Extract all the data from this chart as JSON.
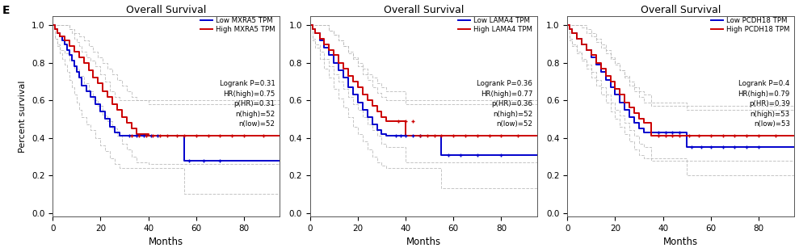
{
  "panels": [
    {
      "title": "Overall Survival",
      "gene": "MXRA5",
      "low_label": "Low MXRA5 TPM",
      "high_label": "High MXRA5 TPM",
      "logrank_p": "0.31",
      "hr_high": "0.75",
      "p_hr": "0.31",
      "n_high": "52",
      "n_low": "52",
      "blue": {
        "x": [
          0,
          1,
          2,
          3,
          4,
          5,
          6,
          7,
          8,
          9,
          10,
          11,
          12,
          14,
          16,
          18,
          20,
          22,
          24,
          26,
          28,
          30,
          32,
          35,
          55,
          57,
          95
        ],
        "y": [
          1.0,
          0.98,
          0.96,
          0.94,
          0.92,
          0.9,
          0.87,
          0.84,
          0.81,
          0.78,
          0.75,
          0.72,
          0.68,
          0.65,
          0.62,
          0.58,
          0.54,
          0.5,
          0.46,
          0.43,
          0.41,
          0.41,
          0.41,
          0.41,
          0.28,
          0.28,
          0.28
        ],
        "ci_low": [
          1.0,
          0.93,
          0.89,
          0.85,
          0.82,
          0.79,
          0.75,
          0.71,
          0.67,
          0.63,
          0.59,
          0.55,
          0.51,
          0.47,
          0.44,
          0.4,
          0.36,
          0.33,
          0.29,
          0.26,
          0.24,
          0.24,
          0.24,
          0.24,
          0.1,
          0.1,
          0.1
        ],
        "ci_high": [
          1.0,
          1.0,
          1.0,
          1.0,
          1.0,
          1.0,
          1.0,
          0.98,
          0.96,
          0.93,
          0.91,
          0.89,
          0.86,
          0.83,
          0.81,
          0.78,
          0.74,
          0.7,
          0.65,
          0.62,
          0.6,
          0.6,
          0.6,
          0.6,
          0.6,
          0.6,
          0.6
        ],
        "censors_x": [
          32,
          35,
          38,
          41,
          44,
          57,
          63,
          70
        ],
        "censors_y": [
          0.41,
          0.41,
          0.41,
          0.41,
          0.41,
          0.28,
          0.28,
          0.28
        ]
      },
      "red": {
        "x": [
          0,
          1,
          2,
          3,
          5,
          7,
          9,
          11,
          13,
          15,
          17,
          19,
          21,
          23,
          25,
          27,
          29,
          31,
          33,
          35,
          40,
          45,
          50,
          55,
          60,
          65,
          70,
          80,
          95
        ],
        "y": [
          1.0,
          0.98,
          0.96,
          0.94,
          0.92,
          0.89,
          0.86,
          0.83,
          0.8,
          0.76,
          0.72,
          0.69,
          0.65,
          0.62,
          0.58,
          0.55,
          0.51,
          0.48,
          0.45,
          0.42,
          0.41,
          0.41,
          0.41,
          0.41,
          0.41,
          0.41,
          0.41,
          0.41,
          0.41
        ],
        "ci_low": [
          1.0,
          0.93,
          0.9,
          0.87,
          0.85,
          0.81,
          0.77,
          0.73,
          0.69,
          0.65,
          0.6,
          0.57,
          0.52,
          0.49,
          0.45,
          0.41,
          0.37,
          0.34,
          0.3,
          0.27,
          0.26,
          0.26,
          0.26,
          0.26,
          0.26,
          0.26,
          0.26,
          0.26,
          0.26
        ],
        "ci_high": [
          1.0,
          1.0,
          1.0,
          1.0,
          1.0,
          0.98,
          0.96,
          0.94,
          0.92,
          0.89,
          0.86,
          0.83,
          0.8,
          0.77,
          0.74,
          0.71,
          0.68,
          0.65,
          0.62,
          0.6,
          0.58,
          0.58,
          0.58,
          0.58,
          0.58,
          0.58,
          0.58,
          0.58,
          0.58
        ],
        "censors_x": [
          33,
          36,
          39,
          42,
          45,
          48,
          52,
          55,
          60,
          65,
          70,
          75,
          80,
          88
        ],
        "censors_y": [
          0.41,
          0.41,
          0.41,
          0.41,
          0.41,
          0.41,
          0.41,
          0.41,
          0.41,
          0.41,
          0.41,
          0.41,
          0.41,
          0.41
        ]
      }
    },
    {
      "title": "Overall Survival",
      "gene": "LAMA4",
      "low_label": "Low LAMA4 TPM",
      "high_label": "High LAMA4 TPM",
      "logrank_p": "0.36",
      "hr_high": "0.77",
      "p_hr": "0.36",
      "n_high": "52",
      "n_low": "52",
      "blue": {
        "x": [
          0,
          1,
          2,
          4,
          6,
          8,
          10,
          12,
          14,
          16,
          18,
          20,
          22,
          24,
          26,
          28,
          30,
          32,
          34,
          36,
          55,
          58,
          62,
          70,
          95
        ],
        "y": [
          1.0,
          0.98,
          0.96,
          0.92,
          0.88,
          0.84,
          0.8,
          0.76,
          0.72,
          0.67,
          0.63,
          0.59,
          0.55,
          0.51,
          0.47,
          0.44,
          0.42,
          0.41,
          0.41,
          0.41,
          0.31,
          0.31,
          0.31,
          0.31,
          0.31
        ],
        "ci_low": [
          1.0,
          0.92,
          0.88,
          0.82,
          0.77,
          0.72,
          0.66,
          0.61,
          0.56,
          0.51,
          0.46,
          0.42,
          0.38,
          0.34,
          0.3,
          0.27,
          0.25,
          0.24,
          0.24,
          0.24,
          0.13,
          0.13,
          0.13,
          0.13,
          0.13
        ],
        "ci_high": [
          1.0,
          1.0,
          1.0,
          1.0,
          1.0,
          0.97,
          0.95,
          0.92,
          0.89,
          0.85,
          0.82,
          0.78,
          0.74,
          0.71,
          0.67,
          0.64,
          0.62,
          0.6,
          0.6,
          0.6,
          0.6,
          0.6,
          0.6,
          0.6,
          0.6
        ],
        "censors_x": [
          36,
          38,
          40,
          43,
          46,
          58,
          63,
          70,
          80
        ],
        "censors_y": [
          0.41,
          0.41,
          0.41,
          0.41,
          0.41,
          0.31,
          0.31,
          0.31,
          0.31
        ]
      },
      "red": {
        "x": [
          0,
          1,
          2,
          4,
          6,
          8,
          10,
          12,
          14,
          16,
          18,
          20,
          22,
          24,
          26,
          28,
          30,
          32,
          34,
          36,
          40,
          45,
          50,
          55,
          60,
          65,
          70,
          80,
          95
        ],
        "y": [
          1.0,
          0.98,
          0.96,
          0.93,
          0.9,
          0.87,
          0.84,
          0.8,
          0.77,
          0.73,
          0.7,
          0.67,
          0.63,
          0.6,
          0.57,
          0.54,
          0.51,
          0.49,
          0.49,
          0.49,
          0.41,
          0.41,
          0.41,
          0.41,
          0.41,
          0.41,
          0.41,
          0.41,
          0.41
        ],
        "ci_low": [
          1.0,
          0.93,
          0.9,
          0.86,
          0.82,
          0.78,
          0.74,
          0.7,
          0.66,
          0.62,
          0.58,
          0.55,
          0.51,
          0.47,
          0.44,
          0.41,
          0.37,
          0.35,
          0.35,
          0.35,
          0.27,
          0.27,
          0.27,
          0.27,
          0.27,
          0.27,
          0.27,
          0.27,
          0.27
        ],
        "ci_high": [
          1.0,
          1.0,
          1.0,
          1.0,
          1.0,
          0.97,
          0.95,
          0.92,
          0.89,
          0.86,
          0.83,
          0.8,
          0.77,
          0.74,
          0.72,
          0.69,
          0.67,
          0.65,
          0.65,
          0.65,
          0.58,
          0.58,
          0.58,
          0.58,
          0.58,
          0.58,
          0.58,
          0.58,
          0.58
        ],
        "censors_x": [
          37,
          40,
          43,
          46,
          49,
          52,
          55,
          60,
          65,
          70,
          75,
          80,
          87
        ],
        "censors_y": [
          0.49,
          0.49,
          0.49,
          0.41,
          0.41,
          0.41,
          0.41,
          0.41,
          0.41,
          0.41,
          0.41,
          0.41,
          0.41
        ]
      }
    },
    {
      "title": "Overall Survival",
      "gene": "PCDH18",
      "low_label": "Low PCDH18 TPM",
      "high_label": "High PCDH18 TPM",
      "logrank_p": "0.4",
      "hr_high": "0.79",
      "p_hr": "0.39",
      "n_high": "53",
      "n_low": "53",
      "blue": {
        "x": [
          0,
          1,
          2,
          4,
          6,
          8,
          10,
          12,
          14,
          16,
          18,
          20,
          22,
          24,
          26,
          28,
          30,
          32,
          35,
          38,
          42,
          46,
          50,
          54,
          58,
          62,
          66,
          70,
          80,
          95
        ],
        "y": [
          1.0,
          0.98,
          0.96,
          0.93,
          0.9,
          0.87,
          0.83,
          0.79,
          0.75,
          0.71,
          0.67,
          0.63,
          0.59,
          0.55,
          0.51,
          0.48,
          0.45,
          0.43,
          0.43,
          0.43,
          0.43,
          0.43,
          0.35,
          0.35,
          0.35,
          0.35,
          0.35,
          0.35,
          0.35,
          0.35
        ],
        "ci_low": [
          1.0,
          0.92,
          0.89,
          0.85,
          0.81,
          0.77,
          0.72,
          0.68,
          0.63,
          0.59,
          0.54,
          0.5,
          0.46,
          0.42,
          0.38,
          0.34,
          0.31,
          0.29,
          0.29,
          0.29,
          0.29,
          0.29,
          0.2,
          0.2,
          0.2,
          0.2,
          0.2,
          0.2,
          0.2,
          0.2
        ],
        "ci_high": [
          1.0,
          1.0,
          1.0,
          1.0,
          1.0,
          0.98,
          0.96,
          0.93,
          0.9,
          0.87,
          0.83,
          0.8,
          0.76,
          0.72,
          0.68,
          0.65,
          0.62,
          0.59,
          0.59,
          0.59,
          0.59,
          0.59,
          0.55,
          0.55,
          0.55,
          0.55,
          0.55,
          0.55,
          0.55,
          0.55
        ],
        "censors_x": [
          38,
          41,
          44,
          47,
          52,
          56,
          60,
          65,
          70,
          75,
          80
        ],
        "censors_y": [
          0.43,
          0.43,
          0.43,
          0.43,
          0.35,
          0.35,
          0.35,
          0.35,
          0.35,
          0.35,
          0.35
        ]
      },
      "red": {
        "x": [
          0,
          1,
          2,
          4,
          6,
          8,
          10,
          12,
          14,
          16,
          18,
          20,
          22,
          24,
          26,
          28,
          30,
          32,
          35,
          38,
          42,
          46,
          50,
          55,
          60,
          65,
          70,
          80,
          90,
          95
        ],
        "y": [
          1.0,
          0.98,
          0.96,
          0.93,
          0.9,
          0.87,
          0.84,
          0.8,
          0.77,
          0.73,
          0.7,
          0.66,
          0.63,
          0.59,
          0.56,
          0.53,
          0.5,
          0.48,
          0.41,
          0.41,
          0.41,
          0.41,
          0.41,
          0.41,
          0.41,
          0.41,
          0.41,
          0.41,
          0.41,
          0.41
        ],
        "ci_low": [
          1.0,
          0.93,
          0.9,
          0.86,
          0.82,
          0.79,
          0.75,
          0.71,
          0.67,
          0.63,
          0.59,
          0.55,
          0.52,
          0.48,
          0.44,
          0.41,
          0.37,
          0.35,
          0.28,
          0.28,
          0.28,
          0.28,
          0.28,
          0.28,
          0.28,
          0.28,
          0.28,
          0.28,
          0.28,
          0.28
        ],
        "ci_high": [
          1.0,
          1.0,
          1.0,
          1.0,
          0.99,
          0.96,
          0.94,
          0.91,
          0.88,
          0.85,
          0.82,
          0.79,
          0.76,
          0.73,
          0.7,
          0.67,
          0.65,
          0.63,
          0.57,
          0.57,
          0.57,
          0.57,
          0.57,
          0.57,
          0.57,
          0.57,
          0.57,
          0.57,
          0.57,
          0.57
        ],
        "censors_x": [
          38,
          41,
          44,
          47,
          51,
          55,
          60,
          65,
          70,
          75,
          80,
          87
        ],
        "censors_y": [
          0.41,
          0.41,
          0.41,
          0.41,
          0.41,
          0.41,
          0.41,
          0.41,
          0.41,
          0.41,
          0.41,
          0.41
        ]
      }
    }
  ],
  "xlim": [
    0,
    95
  ],
  "ylim": [
    -0.02,
    1.05
  ],
  "xticks": [
    0,
    20,
    40,
    60,
    80
  ],
  "yticks": [
    0.0,
    0.2,
    0.4,
    0.6,
    0.8,
    1.0
  ],
  "xlabel": "Months",
  "ylabel": "Percent survival",
  "blue_color": "#0000CC",
  "red_color": "#CC0000",
  "ci_color": "#BBBBBB",
  "bg_color": "#FFFFFF",
  "label_E": "E"
}
